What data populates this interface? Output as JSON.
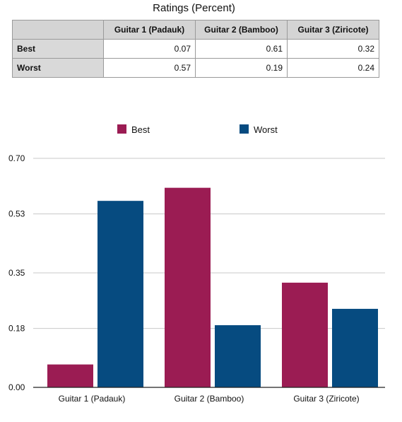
{
  "table": {
    "title": "Ratings (Percent)",
    "columns": [
      "Guitar 1 (Padauk)",
      "Guitar 2 (Bamboo)",
      "Guitar 3 (Ziricote)"
    ],
    "rows": [
      {
        "label": "Best",
        "values": [
          "0.07",
          "0.61",
          "0.32"
        ]
      },
      {
        "label": "Worst",
        "values": [
          "0.57",
          "0.19",
          "0.24"
        ]
      }
    ]
  },
  "chart_data": {
    "type": "bar",
    "title": "",
    "xlabel": "",
    "ylabel": "",
    "categories": [
      "Guitar 1 (Padauk)",
      "Guitar 2 (Bamboo)",
      "Guitar 3 (Ziricote)"
    ],
    "series": [
      {
        "name": "Best",
        "values": [
          0.07,
          0.61,
          0.32
        ],
        "color": "#9b1c53"
      },
      {
        "name": "Worst",
        "values": [
          0.57,
          0.19,
          0.24
        ],
        "color": "#064b80"
      }
    ],
    "ylim": [
      0,
      0.7
    ],
    "yticks": [
      "0.00",
      "0.18",
      "0.35",
      "0.53",
      "0.70"
    ],
    "grid": true,
    "legend": "top-center"
  }
}
